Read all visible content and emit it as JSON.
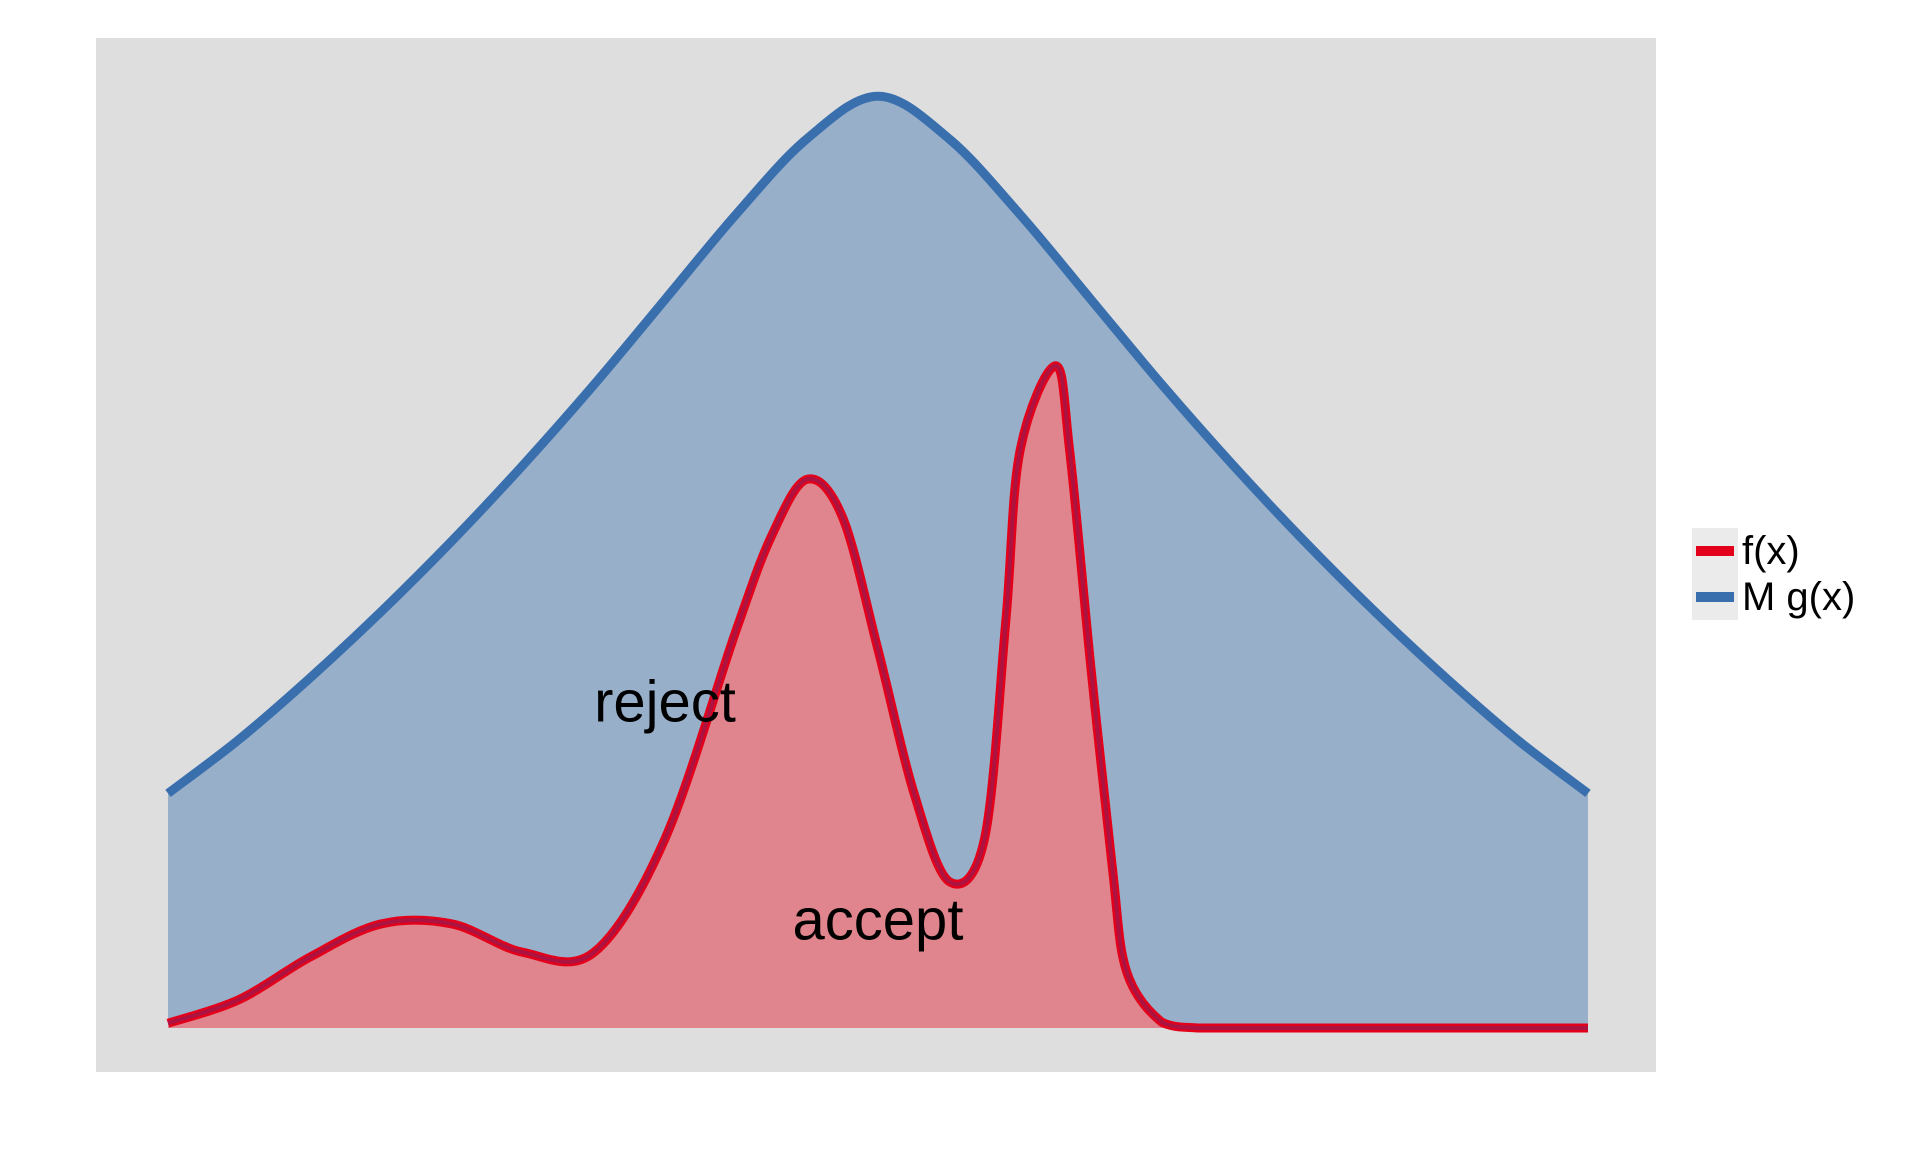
{
  "chart_data": {
    "type": "area",
    "title": "",
    "xlabel": "",
    "ylabel": "",
    "xlim": [
      0,
      1
    ],
    "ylim": [
      0,
      1
    ],
    "grid": false,
    "axis_ticks": false,
    "legend_position": "right",
    "annotations": [
      {
        "text": "reject",
        "x": 0.35,
        "y": 0.34
      },
      {
        "text": "accept",
        "x": 0.5,
        "y": 0.11
      }
    ],
    "series": [
      {
        "name": "f(x)",
        "color": "#e3001b",
        "fill": "#e0848d",
        "x": [
          0,
          0.05,
          0.1,
          0.15,
          0.2,
          0.25,
          0.3,
          0.35,
          0.4,
          0.425,
          0.45,
          0.475,
          0.5,
          0.525,
          0.55,
          0.575,
          0.59,
          0.6,
          0.625,
          0.635,
          0.65,
          0.665,
          0.675,
          0.7,
          0.725,
          0.75,
          0.775,
          0.8,
          0.85,
          0.9,
          0.95,
          1
        ],
        "y": [
          0.005,
          0.03,
          0.075,
          0.11,
          0.11,
          0.08,
          0.08,
          0.2,
          0.42,
          0.52,
          0.58,
          0.54,
          0.4,
          0.25,
          0.155,
          0.2,
          0.43,
          0.61,
          0.7,
          0.61,
          0.38,
          0.17,
          0.06,
          0.006,
          0.0,
          0.0,
          0.0,
          0.0,
          0.0,
          0.0,
          0.0,
          0.0
        ]
      },
      {
        "name": "M g(x)",
        "color": "#3a6fae",
        "fill": "#98afca",
        "x": [
          0,
          0.05,
          0.1,
          0.15,
          0.2,
          0.25,
          0.3,
          0.35,
          0.4,
          0.45,
          0.5,
          0.55,
          0.6,
          0.65,
          0.7,
          0.75,
          0.8,
          0.85,
          0.9,
          0.95,
          1
        ],
        "y": [
          0.248,
          0.305,
          0.37,
          0.44,
          0.515,
          0.595,
          0.68,
          0.77,
          0.86,
          0.94,
          0.985,
          0.94,
          0.86,
          0.77,
          0.68,
          0.595,
          0.515,
          0.44,
          0.37,
          0.305,
          0.248
        ]
      }
    ]
  },
  "legend": {
    "items": [
      {
        "label": "f(x)",
        "color": "#e3001b"
      },
      {
        "label": "M g(x)",
        "color": "#3a6fae"
      }
    ]
  },
  "style": {
    "panel_background": "#dedede",
    "legend_key_background": "#ebebeb"
  }
}
